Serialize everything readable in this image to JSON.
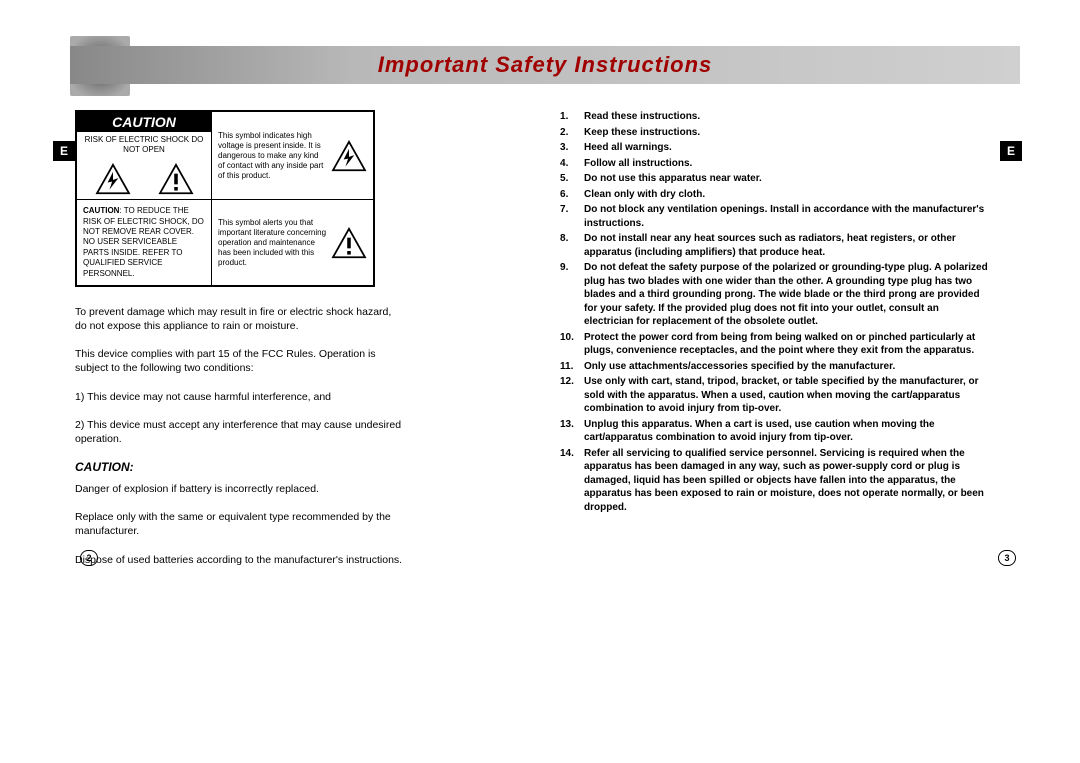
{
  "header": {
    "title": "Important Safety Instructions",
    "tab_label": "E"
  },
  "caution_box": {
    "label": "CAUTION",
    "risk_text": "RISK OF ELECTRIC SHOCK DO NOT OPEN",
    "reduce_text": "CAUTION: TO REDUCE THE RISK OF ELECTRIC SHOCK, DO NOT REMOVE REAR COVER. NO USER SERVICEABLE PARTS INSIDE. REFER TO QUALIFIED SERVICE PERSONNEL.",
    "bolt_desc": "This symbol indicates high voltage is present inside. It is dangerous to make any kind of contact with any inside part of this product.",
    "excl_desc": "This symbol alerts you that important literature concerning operation and maintenance has been included with this product."
  },
  "left_page": {
    "p1": "To prevent damage which may result in fire or electric shock hazard, do not expose this appliance to rain or moisture.",
    "p2": "This device complies with part 15 of the FCC Rules. Operation is subject to the following two conditions:",
    "p3": "1) This device may not cause harmful interference, and",
    "p4": "2) This device must accept any interference that may cause undesired operation.",
    "caution_heading": "CAUTION:",
    "p5": "Danger of explosion if battery is incorrectly replaced.",
    "p6": "Replace only with the same or equivalent type recommended by the manufacturer.",
    "p7": "Dispose of used batteries according to the manufacturer's instructions.",
    "page_number": "2"
  },
  "right_page": {
    "instructions": [
      "Read these instructions.",
      "Keep these instructions.",
      "Heed all warnings.",
      "Follow all instructions.",
      "Do not use this apparatus near water.",
      "Clean only with dry cloth.",
      "Do not block any ventilation openings. Install in accordance with the manufacturer's instructions.",
      "Do not install near any heat sources such as radiators, heat registers, or other apparatus (including amplifiers) that produce heat.",
      "Do not defeat the safety purpose of the polarized or grounding-type plug. A polarized plug has two blades with one wider than the other. A grounding type plug has two blades and a third grounding prong. The wide blade or the third prong are provided for your safety. If the provided plug does not fit into your outlet, consult an electrician for replacement of the obsolete outlet.",
      "Protect the power cord from being from being walked on or pinched particularly at plugs, convenience receptacles, and the point where they exit from the apparatus.",
      "Only use attachments/accessories specified by the manufacturer.",
      "Use only with cart, stand, tripod, bracket, or table specified by the manufacturer, or sold with the apparatus. When a used, caution when moving the cart/apparatus combination to avoid injury from tip-over.",
      "Unplug this apparatus. When a cart is used, use caution when moving the cart/apparatus combination to avoid injury from tip-over.",
      "Refer all servicing to qualified service personnel. Servicing is required when the apparatus has been damaged in any way, such as power-supply cord or plug is damaged, liquid has been spilled or objects have fallen into the apparatus, the apparatus has been exposed to rain or moisture, does not operate normally, or been dropped."
    ],
    "page_number": "3"
  }
}
